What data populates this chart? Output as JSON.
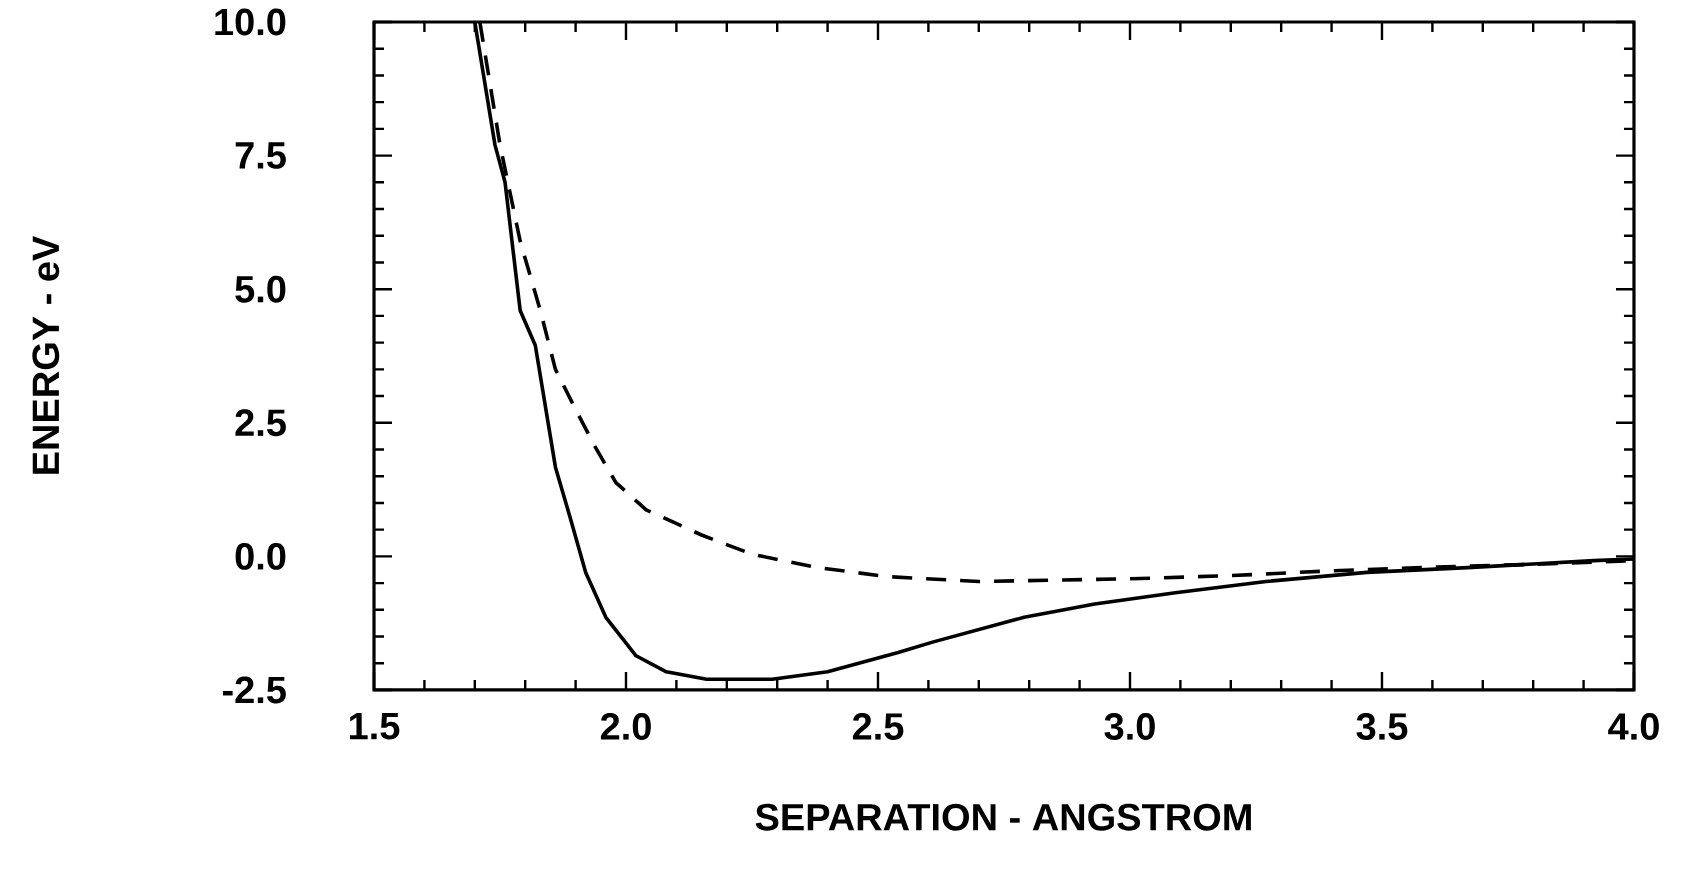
{
  "chart_data": {
    "type": "line",
    "xlabel": "SEPARATION - ANGSTROM",
    "ylabel": "ENERGY - eV",
    "xlim": [
      1.5,
      4.0
    ],
    "ylim": [
      -2.5,
      10.0
    ],
    "xticks": [
      1.5,
      {
        "value": 2,
        "label": "2.0"
      },
      2.5,
      {
        "value": 3,
        "label": "3.0"
      },
      3.5,
      {
        "value": 4,
        "label": "4.0"
      }
    ],
    "yticks": [
      -2.5,
      {
        "value": 0,
        "label": "0.0"
      },
      2.5,
      {
        "value": 5,
        "label": "5.0"
      },
      7.5,
      {
        "value": 10,
        "label": "10.0"
      }
    ],
    "grid": false,
    "marker": "none",
    "series": [
      {
        "color": "#000000",
        "line_style": "solid",
        "x": [
          1.7,
          1.74,
          1.76,
          1.79,
          1.82,
          1.86,
          1.89,
          1.92,
          1.96,
          2.02,
          2.08,
          2.16,
          2.29,
          2.4,
          2.54,
          2.61,
          2.79,
          2.93,
          3.09,
          3.27,
          3.47,
          3.67,
          3.92,
          4.0
        ],
        "values": [
          10.0,
          7.7,
          7.0,
          4.6,
          3.95,
          1.67,
          0.7,
          -0.3,
          -1.14,
          -1.86,
          -2.16,
          -2.3,
          -2.3,
          -2.16,
          -1.8,
          -1.6,
          -1.14,
          -0.89,
          -0.68,
          -0.47,
          -0.3,
          -0.21,
          -0.08,
          -0.05
        ]
      },
      {
        "color": "#000000",
        "line_style": "dashed",
        "x": [
          1.71,
          1.75,
          1.79,
          1.83,
          1.86,
          1.9,
          1.94,
          1.98,
          2.04,
          2.15,
          2.25,
          2.38,
          2.52,
          2.7,
          3.0,
          3.2,
          3.4,
          3.6,
          3.8,
          4.0
        ],
        "values": [
          10.0,
          7.7,
          5.9,
          4.6,
          3.5,
          2.75,
          2.03,
          1.38,
          0.87,
          0.4,
          0.04,
          -0.21,
          -0.38,
          -0.47,
          -0.42,
          -0.36,
          -0.27,
          -0.2,
          -0.15,
          -0.08
        ]
      }
    ]
  }
}
